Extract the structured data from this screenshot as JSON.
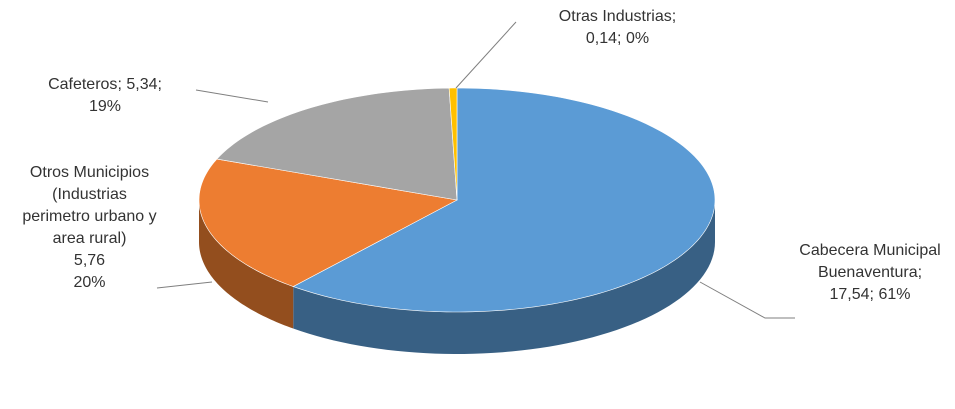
{
  "chart_data": {
    "type": "pie3d",
    "categories": [
      "Cabecera Municipal Buenaventura",
      "Otros Municipios (Industrias perimetro urbano y area rural)",
      "Cafeteros",
      "Otras Industrias"
    ],
    "values": [
      17.54,
      5.76,
      5.34,
      0.14
    ],
    "value_labels": [
      "17,54",
      "5,76",
      "5,34",
      "0,14"
    ],
    "percent_labels": [
      "61%",
      "20%",
      "19%",
      "0%"
    ],
    "separator": ";",
    "colors": [
      "#5b9bd5",
      "#ed7d31",
      "#a5a5a5",
      "#ffc000"
    ]
  }
}
